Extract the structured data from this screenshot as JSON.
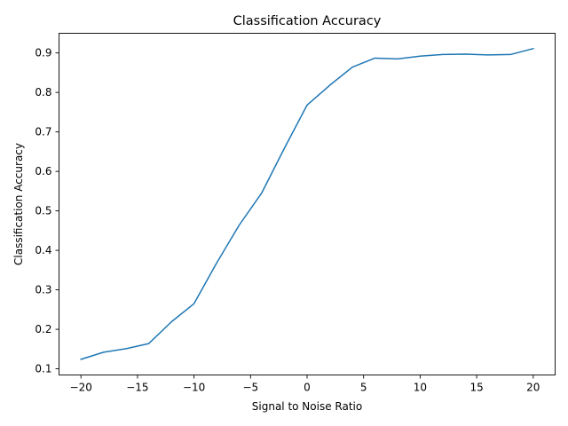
{
  "chart_data": {
    "type": "line",
    "title": "Classification Accuracy",
    "xlabel": "Signal to Noise Ratio",
    "ylabel": "Classification Accuracy",
    "xlim": [
      -21.94,
      21.94
    ],
    "ylim": [
      0.0844,
      0.9498
    ],
    "x_ticks": [
      -20,
      -15,
      -10,
      -5,
      0,
      5,
      10,
      15,
      20
    ],
    "x_tick_labels": [
      "−20",
      "−15",
      "−10",
      "−5",
      "0",
      "5",
      "10",
      "15",
      "20"
    ],
    "y_ticks": [
      0.1,
      0.2,
      0.3,
      0.4,
      0.5,
      0.6,
      0.7,
      0.8,
      0.9
    ],
    "y_tick_labels": [
      "0.1",
      "0.2",
      "0.3",
      "0.4",
      "0.5",
      "0.6",
      "0.7",
      "0.8",
      "0.9"
    ],
    "grid": false,
    "legend": "none",
    "line_color": "#1f77b4",
    "series": [
      {
        "x": [
          -20,
          -18,
          -16,
          -14,
          -12,
          -10,
          -8,
          -6,
          -4,
          -2,
          0,
          2,
          4,
          6,
          8,
          10,
          12,
          14,
          16,
          18,
          20
        ],
        "values": [
          0.124,
          0.142,
          0.151,
          0.164,
          0.219,
          0.265,
          0.368,
          0.464,
          0.546,
          0.659,
          0.768,
          0.818,
          0.864,
          0.887,
          0.885,
          0.892,
          0.896,
          0.897,
          0.895,
          0.896,
          0.911
        ]
      }
    ]
  }
}
